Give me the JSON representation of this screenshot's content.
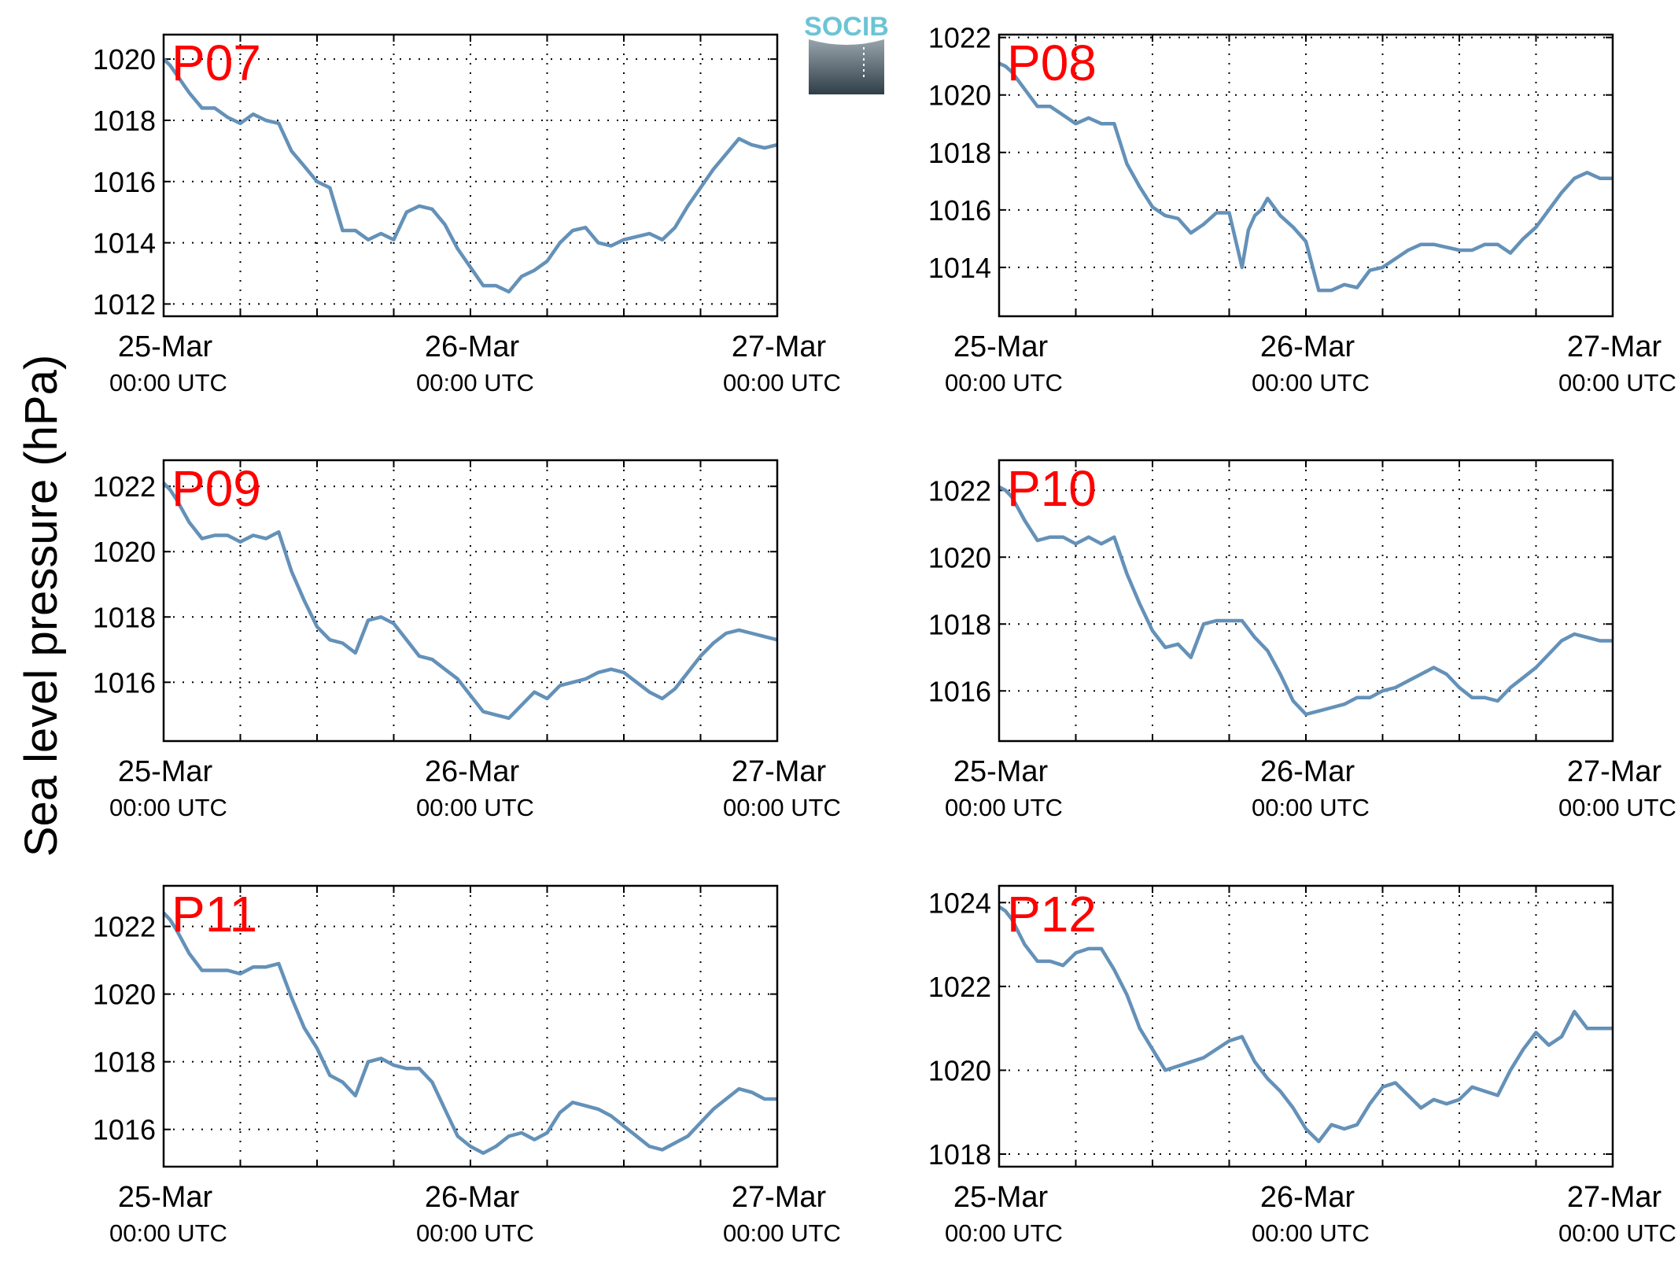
{
  "colors": {
    "line": "#6491b8",
    "panel_tag": "#ff0000",
    "logo_text": "#6cc4d4"
  },
  "logo": {
    "text": "SOCIB"
  },
  "figure_ylabel": "Sea level pressure (hPa)",
  "chart_data": [
    {
      "type": "line",
      "tag": "P07",
      "grid": true,
      "x_ticks": [
        {
          "date": "25-Mar",
          "time": "00:00 UTC"
        },
        {
          "date": "26-Mar",
          "time": "00:00 UTC"
        },
        {
          "date": "27-Mar",
          "time": "00:00 UTC"
        }
      ],
      "xlim": [
        0,
        48
      ],
      "ylim": [
        1011.6,
        1020.8
      ],
      "yticks": [
        1012,
        1014,
        1016,
        1018,
        1020
      ],
      "x": [
        0,
        0.5,
        1,
        2,
        3,
        4,
        5,
        6,
        7,
        8,
        9,
        10,
        11,
        12,
        13,
        14,
        15,
        16,
        17,
        18,
        19,
        20,
        21,
        22,
        23,
        24,
        25,
        26,
        27,
        28,
        29,
        30,
        31,
        32,
        33,
        34,
        35,
        36,
        37,
        38,
        39,
        40,
        41,
        42,
        43,
        44,
        45,
        46,
        47,
        48
      ],
      "y": [
        1020.0,
        1019.8,
        1019.5,
        1018.9,
        1018.4,
        1018.4,
        1018.1,
        1017.9,
        1018.2,
        1018.0,
        1017.9,
        1017.0,
        1016.5,
        1016.0,
        1015.8,
        1014.4,
        1014.4,
        1014.1,
        1014.3,
        1014.1,
        1015.0,
        1015.2,
        1015.1,
        1014.6,
        1013.8,
        1013.2,
        1012.6,
        1012.6,
        1012.4,
        1012.9,
        1013.1,
        1013.4,
        1014.0,
        1014.4,
        1014.5,
        1014.0,
        1013.9,
        1014.1,
        1014.2,
        1014.3,
        1014.1,
        1014.5,
        1015.2,
        1015.8,
        1016.4,
        1016.9,
        1017.4,
        1017.2,
        1017.1,
        1017.2
      ]
    },
    {
      "type": "line",
      "tag": "P08",
      "grid": true,
      "x_ticks": [
        {
          "date": "25-Mar",
          "time": "00:00 UTC"
        },
        {
          "date": "26-Mar",
          "time": "00:00 UTC"
        },
        {
          "date": "27-Mar",
          "time": "00:00 UTC"
        }
      ],
      "xlim": [
        0,
        48
      ],
      "ylim": [
        1012.3,
        1022.1
      ],
      "yticks": [
        1014,
        1016,
        1018,
        1020,
        1022
      ],
      "x": [
        0,
        0.5,
        1,
        2,
        3,
        4,
        5,
        6,
        7,
        8,
        9,
        10,
        11,
        12,
        13,
        14,
        15,
        16,
        17,
        18,
        19,
        19.5,
        20,
        20.5,
        21,
        22,
        23,
        24,
        25,
        26,
        27,
        28,
        29,
        30,
        31,
        32,
        33,
        34,
        35,
        36,
        37,
        38,
        39,
        40,
        41,
        42,
        43,
        44,
        45,
        46,
        47,
        48
      ],
      "y": [
        1021.1,
        1021.0,
        1020.8,
        1020.2,
        1019.6,
        1019.6,
        1019.3,
        1019.0,
        1019.2,
        1019.0,
        1019.0,
        1017.6,
        1016.8,
        1016.1,
        1015.8,
        1015.7,
        1015.2,
        1015.5,
        1015.9,
        1015.9,
        1014.0,
        1015.3,
        1015.8,
        1016.0,
        1016.4,
        1015.8,
        1015.4,
        1014.9,
        1013.2,
        1013.2,
        1013.4,
        1013.3,
        1013.9,
        1014.0,
        1014.3,
        1014.6,
        1014.8,
        1014.8,
        1014.7,
        1014.6,
        1014.6,
        1014.8,
        1014.8,
        1014.5,
        1015.0,
        1015.4,
        1016.0,
        1016.6,
        1017.1,
        1017.3,
        1017.1,
        1017.1
      ]
    },
    {
      "type": "line",
      "tag": "P09",
      "grid": true,
      "x_ticks": [
        {
          "date": "25-Mar",
          "time": "00:00 UTC"
        },
        {
          "date": "26-Mar",
          "time": "00:00 UTC"
        },
        {
          "date": "27-Mar",
          "time": "00:00 UTC"
        }
      ],
      "xlim": [
        0,
        48
      ],
      "ylim": [
        1014.2,
        1022.8
      ],
      "yticks": [
        1016,
        1018,
        1020,
        1022
      ],
      "x": [
        0,
        0.5,
        1,
        2,
        3,
        4,
        5,
        6,
        7,
        8,
        9,
        10,
        11,
        12,
        13,
        14,
        15,
        16,
        17,
        18,
        19,
        20,
        21,
        22,
        23,
        24,
        25,
        26,
        27,
        28,
        29,
        30,
        31,
        32,
        33,
        34,
        35,
        36,
        37,
        38,
        39,
        40,
        41,
        42,
        43,
        44,
        45,
        46,
        47,
        48
      ],
      "y": [
        1022.1,
        1021.9,
        1021.6,
        1020.9,
        1020.4,
        1020.5,
        1020.5,
        1020.3,
        1020.5,
        1020.4,
        1020.6,
        1019.4,
        1018.5,
        1017.7,
        1017.3,
        1017.2,
        1016.9,
        1017.9,
        1018.0,
        1017.8,
        1017.3,
        1016.8,
        1016.7,
        1016.4,
        1016.1,
        1015.6,
        1015.1,
        1015.0,
        1014.9,
        1015.3,
        1015.7,
        1015.5,
        1015.9,
        1016.0,
        1016.1,
        1016.3,
        1016.4,
        1016.3,
        1016.0,
        1015.7,
        1015.5,
        1015.8,
        1016.3,
        1016.8,
        1017.2,
        1017.5,
        1017.6,
        1017.5,
        1017.4,
        1017.3
      ]
    },
    {
      "type": "line",
      "tag": "P10",
      "grid": true,
      "x_ticks": [
        {
          "date": "25-Mar",
          "time": "00:00 UTC"
        },
        {
          "date": "26-Mar",
          "time": "00:00 UTC"
        },
        {
          "date": "27-Mar",
          "time": "00:00 UTC"
        }
      ],
      "xlim": [
        0,
        48
      ],
      "ylim": [
        1014.5,
        1022.9
      ],
      "yticks": [
        1016,
        1018,
        1020,
        1022
      ],
      "x": [
        0,
        0.5,
        1,
        2,
        3,
        4,
        5,
        6,
        7,
        8,
        9,
        10,
        11,
        12,
        13,
        14,
        15,
        16,
        17,
        18,
        19,
        20,
        21,
        22,
        23,
        24,
        25,
        26,
        27,
        28,
        29,
        30,
        31,
        32,
        33,
        34,
        35,
        36,
        37,
        38,
        39,
        40,
        41,
        42,
        43,
        44,
        45,
        46,
        47,
        48
      ],
      "y": [
        1022.1,
        1022.0,
        1021.8,
        1021.1,
        1020.5,
        1020.6,
        1020.6,
        1020.4,
        1020.6,
        1020.4,
        1020.6,
        1019.5,
        1018.6,
        1017.8,
        1017.3,
        1017.4,
        1017.0,
        1018.0,
        1018.1,
        1018.1,
        1018.1,
        1017.6,
        1017.2,
        1016.5,
        1015.7,
        1015.3,
        1015.4,
        1015.5,
        1015.6,
        1015.8,
        1015.8,
        1016.0,
        1016.1,
        1016.3,
        1016.5,
        1016.7,
        1016.5,
        1016.1,
        1015.8,
        1015.8,
        1015.7,
        1016.1,
        1016.4,
        1016.7,
        1017.1,
        1017.5,
        1017.7,
        1017.6,
        1017.5,
        1017.5
      ]
    },
    {
      "type": "line",
      "tag": "P11",
      "grid": true,
      "x_ticks": [
        {
          "date": "25-Mar",
          "time": "00:00 UTC"
        },
        {
          "date": "26-Mar",
          "time": "00:00 UTC"
        },
        {
          "date": "27-Mar",
          "time": "00:00 UTC"
        }
      ],
      "xlim": [
        0,
        48
      ],
      "ylim": [
        1014.9,
        1023.2
      ],
      "yticks": [
        1016,
        1018,
        1020,
        1022
      ],
      "x": [
        0,
        0.5,
        1,
        2,
        3,
        4,
        5,
        6,
        7,
        8,
        9,
        10,
        11,
        12,
        13,
        14,
        15,
        16,
        17,
        18,
        19,
        20,
        21,
        22,
        23,
        24,
        25,
        26,
        27,
        28,
        29,
        30,
        31,
        32,
        33,
        34,
        35,
        36,
        37,
        38,
        39,
        40,
        41,
        42,
        43,
        44,
        45,
        46,
        47,
        48
      ],
      "y": [
        1022.4,
        1022.2,
        1021.9,
        1021.2,
        1020.7,
        1020.7,
        1020.7,
        1020.6,
        1020.8,
        1020.8,
        1020.9,
        1019.9,
        1019.0,
        1018.4,
        1017.6,
        1017.4,
        1017.0,
        1018.0,
        1018.1,
        1017.9,
        1017.8,
        1017.8,
        1017.4,
        1016.6,
        1015.8,
        1015.5,
        1015.3,
        1015.5,
        1015.8,
        1015.9,
        1015.7,
        1015.9,
        1016.5,
        1016.8,
        1016.7,
        1016.6,
        1016.4,
        1016.1,
        1015.8,
        1015.5,
        1015.4,
        1015.6,
        1015.8,
        1016.2,
        1016.6,
        1016.9,
        1017.2,
        1017.1,
        1016.9,
        1016.9
      ]
    },
    {
      "type": "line",
      "tag": "P12",
      "grid": true,
      "x_ticks": [
        {
          "date": "25-Mar",
          "time": "00:00 UTC"
        },
        {
          "date": "26-Mar",
          "time": "00:00 UTC"
        },
        {
          "date": "27-Mar",
          "time": "00:00 UTC"
        }
      ],
      "xlim": [
        0,
        48
      ],
      "ylim": [
        1017.7,
        1024.4
      ],
      "yticks": [
        1018,
        1020,
        1022,
        1024
      ],
      "x": [
        0,
        0.5,
        1,
        2,
        3,
        4,
        5,
        6,
        7,
        8,
        9,
        10,
        11,
        12,
        13,
        14,
        15,
        16,
        17,
        18,
        19,
        20,
        21,
        22,
        23,
        24,
        25,
        26,
        27,
        28,
        29,
        30,
        31,
        32,
        33,
        34,
        35,
        36,
        37,
        38,
        39,
        40,
        41,
        42,
        43,
        44,
        45,
        46,
        47,
        48
      ],
      "y": [
        1023.9,
        1023.8,
        1023.6,
        1023.0,
        1022.6,
        1022.6,
        1022.5,
        1022.8,
        1022.9,
        1022.9,
        1022.4,
        1021.8,
        1021.0,
        1020.5,
        1020.0,
        1020.1,
        1020.2,
        1020.3,
        1020.5,
        1020.7,
        1020.8,
        1020.2,
        1019.8,
        1019.5,
        1019.1,
        1018.6,
        1018.3,
        1018.7,
        1018.6,
        1018.7,
        1019.2,
        1019.6,
        1019.7,
        1019.4,
        1019.1,
        1019.3,
        1019.2,
        1019.3,
        1019.6,
        1019.5,
        1019.4,
        1020.0,
        1020.5,
        1020.9,
        1020.6,
        1020.8,
        1021.4,
        1021.0,
        1021.0,
        1021.0
      ]
    }
  ]
}
